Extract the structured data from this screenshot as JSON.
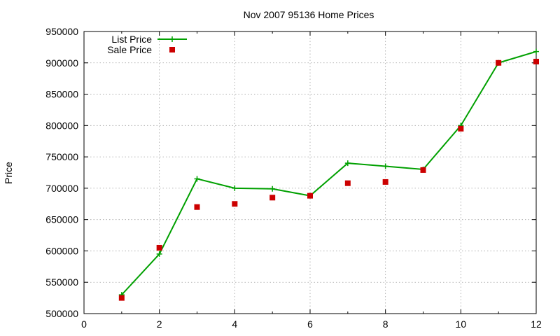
{
  "chart_data": {
    "type": "line",
    "title": "Nov 2007 95136 Home Prices",
    "xlabel": "",
    "ylabel": "Price",
    "xlim": [
      0,
      12
    ],
    "ylim": [
      500000,
      950000
    ],
    "x_ticks": [
      "0",
      "2",
      "4",
      "6",
      "8",
      "10",
      "12"
    ],
    "y_ticks": [
      "500000",
      "550000",
      "600000",
      "650000",
      "700000",
      "750000",
      "800000",
      "850000",
      "900000",
      "950000"
    ],
    "grid": true,
    "legend_position": "top-left",
    "series": [
      {
        "name": "List Price",
        "style": "line-with-plus-markers",
        "color": "#00a000",
        "x": [
          1,
          2,
          3,
          4,
          5,
          6,
          7,
          8,
          9,
          10,
          11,
          12
        ],
        "values": [
          530000,
          595000,
          715000,
          700000,
          699000,
          688000,
          740000,
          735000,
          730000,
          800000,
          900000,
          918000
        ]
      },
      {
        "name": "Sale Price",
        "style": "square-points",
        "color": "#cc0000",
        "x": [
          1,
          2,
          3,
          4,
          5,
          6,
          7,
          8,
          9,
          10,
          11,
          12
        ],
        "values": [
          525000,
          605000,
          670000,
          675000,
          685000,
          688000,
          708000,
          710000,
          729000,
          795000,
          900000,
          902000
        ]
      }
    ]
  }
}
